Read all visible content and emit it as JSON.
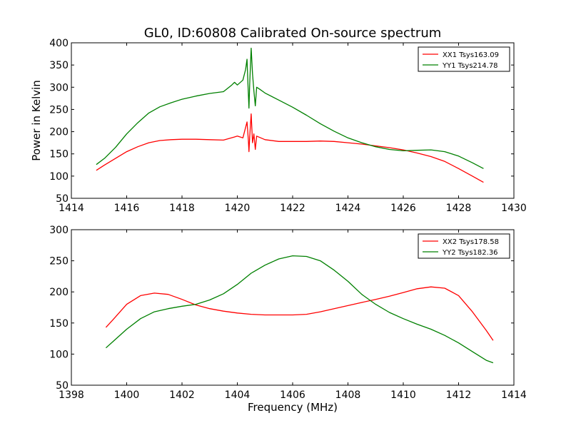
{
  "title": "GL0, ID:60808 Calibrated On-source spectrum",
  "chart_data": [
    {
      "type": "line",
      "title": "GL0, ID:60808 Calibrated On-source spectrum",
      "xlabel": "",
      "ylabel": "Power in Kelvin",
      "xlim": [
        1414,
        1430
      ],
      "ylim": [
        50,
        400
      ],
      "xticks": [
        1414,
        1416,
        1418,
        1420,
        1422,
        1424,
        1426,
        1428,
        1430
      ],
      "yticks": [
        50,
        100,
        150,
        200,
        250,
        300,
        350,
        400
      ],
      "grid": false,
      "legend_position": "top-right",
      "series": [
        {
          "name": "XX1 Tsys163.09",
          "color": "#ff0000",
          "points": [
            [
              1414.9,
              113
            ],
            [
              1415.2,
              125
            ],
            [
              1415.6,
              140
            ],
            [
              1416.0,
              155
            ],
            [
              1416.4,
              166
            ],
            [
              1416.8,
              175
            ],
            [
              1417.2,
              180
            ],
            [
              1417.6,
              182
            ],
            [
              1418.0,
              183
            ],
            [
              1418.5,
              183
            ],
            [
              1419.0,
              182
            ],
            [
              1419.5,
              181
            ],
            [
              1419.9,
              188
            ],
            [
              1420.0,
              190
            ],
            [
              1420.2,
              186
            ],
            [
              1420.35,
              222
            ],
            [
              1420.4,
              180
            ],
            [
              1420.42,
              155
            ],
            [
              1420.45,
              190
            ],
            [
              1420.5,
              240
            ],
            [
              1420.55,
              175
            ],
            [
              1420.6,
              195
            ],
            [
              1420.65,
              160
            ],
            [
              1420.7,
              190
            ],
            [
              1421.0,
              182
            ],
            [
              1421.5,
              178
            ],
            [
              1422.0,
              178
            ],
            [
              1422.5,
              178
            ],
            [
              1423.0,
              179
            ],
            [
              1423.5,
              178
            ],
            [
              1424.0,
              175
            ],
            [
              1424.5,
              172
            ],
            [
              1425.0,
              168
            ],
            [
              1425.5,
              164
            ],
            [
              1426.0,
              159
            ],
            [
              1426.5,
              152
            ],
            [
              1427.0,
              144
            ],
            [
              1427.5,
              133
            ],
            [
              1428.0,
              117
            ],
            [
              1428.5,
              100
            ],
            [
              1428.9,
              86
            ]
          ]
        },
        {
          "name": "YY1 Tsys214.78",
          "color": "#008000",
          "points": [
            [
              1414.9,
              126
            ],
            [
              1415.2,
              140
            ],
            [
              1415.6,
              165
            ],
            [
              1416.0,
              195
            ],
            [
              1416.4,
              220
            ],
            [
              1416.8,
              242
            ],
            [
              1417.2,
              256
            ],
            [
              1417.6,
              265
            ],
            [
              1418.0,
              273
            ],
            [
              1418.5,
              280
            ],
            [
              1419.0,
              286
            ],
            [
              1419.5,
              290
            ],
            [
              1419.8,
              305
            ],
            [
              1419.9,
              311
            ],
            [
              1420.0,
              305
            ],
            [
              1420.2,
              316
            ],
            [
              1420.3,
              340
            ],
            [
              1420.35,
              363
            ],
            [
              1420.38,
              315
            ],
            [
              1420.42,
              253
            ],
            [
              1420.45,
              310
            ],
            [
              1420.5,
              388
            ],
            [
              1420.55,
              330
            ],
            [
              1420.6,
              292
            ],
            [
              1420.65,
              258
            ],
            [
              1420.7,
              300
            ],
            [
              1420.8,
              296
            ],
            [
              1421.0,
              287
            ],
            [
              1421.5,
              271
            ],
            [
              1422.0,
              255
            ],
            [
              1422.5,
              237
            ],
            [
              1423.0,
              218
            ],
            [
              1423.5,
              201
            ],
            [
              1424.0,
              186
            ],
            [
              1424.5,
              175
            ],
            [
              1425.0,
              166
            ],
            [
              1425.5,
              160
            ],
            [
              1426.0,
              157
            ],
            [
              1426.5,
              158
            ],
            [
              1427.0,
              159
            ],
            [
              1427.5,
              155
            ],
            [
              1428.0,
              145
            ],
            [
              1428.5,
              130
            ],
            [
              1428.9,
              117
            ]
          ]
        }
      ]
    },
    {
      "type": "line",
      "title": "",
      "xlabel": "Frequency (MHz)",
      "ylabel": "",
      "xlim": [
        1398,
        1414
      ],
      "ylim": [
        50,
        300
      ],
      "xticks": [
        1398,
        1400,
        1402,
        1404,
        1406,
        1408,
        1410,
        1412,
        1414
      ],
      "yticks": [
        50,
        100,
        150,
        200,
        250,
        300
      ],
      "grid": false,
      "legend_position": "top-right",
      "series": [
        {
          "name": "XX2 Tsys178.58",
          "color": "#ff0000",
          "points": [
            [
              1399.25,
              143
            ],
            [
              1399.5,
              155
            ],
            [
              1400.0,
              180
            ],
            [
              1400.5,
              194
            ],
            [
              1401.0,
              198
            ],
            [
              1401.5,
              196
            ],
            [
              1402.0,
              188
            ],
            [
              1402.5,
              179
            ],
            [
              1403.0,
              173
            ],
            [
              1403.5,
              169
            ],
            [
              1404.0,
              166
            ],
            [
              1404.5,
              164
            ],
            [
              1405.0,
              163
            ],
            [
              1405.5,
              163
            ],
            [
              1406.0,
              163
            ],
            [
              1406.5,
              164
            ],
            [
              1407.0,
              168
            ],
            [
              1407.5,
              173
            ],
            [
              1408.0,
              178
            ],
            [
              1408.5,
              183
            ],
            [
              1409.0,
              188
            ],
            [
              1409.5,
              193
            ],
            [
              1410.0,
              199
            ],
            [
              1410.5,
              205
            ],
            [
              1411.0,
              208
            ],
            [
              1411.5,
              206
            ],
            [
              1412.0,
              194
            ],
            [
              1412.5,
              168
            ],
            [
              1413.0,
              138
            ],
            [
              1413.25,
              122
            ]
          ]
        },
        {
          "name": "YY2 Tsys182.36",
          "color": "#008000",
          "points": [
            [
              1399.25,
              110
            ],
            [
              1399.5,
              120
            ],
            [
              1400.0,
              140
            ],
            [
              1400.5,
              157
            ],
            [
              1401.0,
              168
            ],
            [
              1401.5,
              173
            ],
            [
              1402.0,
              177
            ],
            [
              1402.5,
              180
            ],
            [
              1403.0,
              187
            ],
            [
              1403.5,
              197
            ],
            [
              1404.0,
              212
            ],
            [
              1404.5,
              230
            ],
            [
              1405.0,
              243
            ],
            [
              1405.5,
              253
            ],
            [
              1406.0,
              258
            ],
            [
              1406.5,
              257
            ],
            [
              1407.0,
              250
            ],
            [
              1407.5,
              235
            ],
            [
              1408.0,
              217
            ],
            [
              1408.5,
              196
            ],
            [
              1409.0,
              180
            ],
            [
              1409.5,
              167
            ],
            [
              1410.0,
              157
            ],
            [
              1410.5,
              148
            ],
            [
              1411.0,
              140
            ],
            [
              1411.5,
              130
            ],
            [
              1412.0,
              118
            ],
            [
              1412.5,
              104
            ],
            [
              1413.0,
              90
            ],
            [
              1413.25,
              86
            ]
          ]
        }
      ]
    }
  ]
}
